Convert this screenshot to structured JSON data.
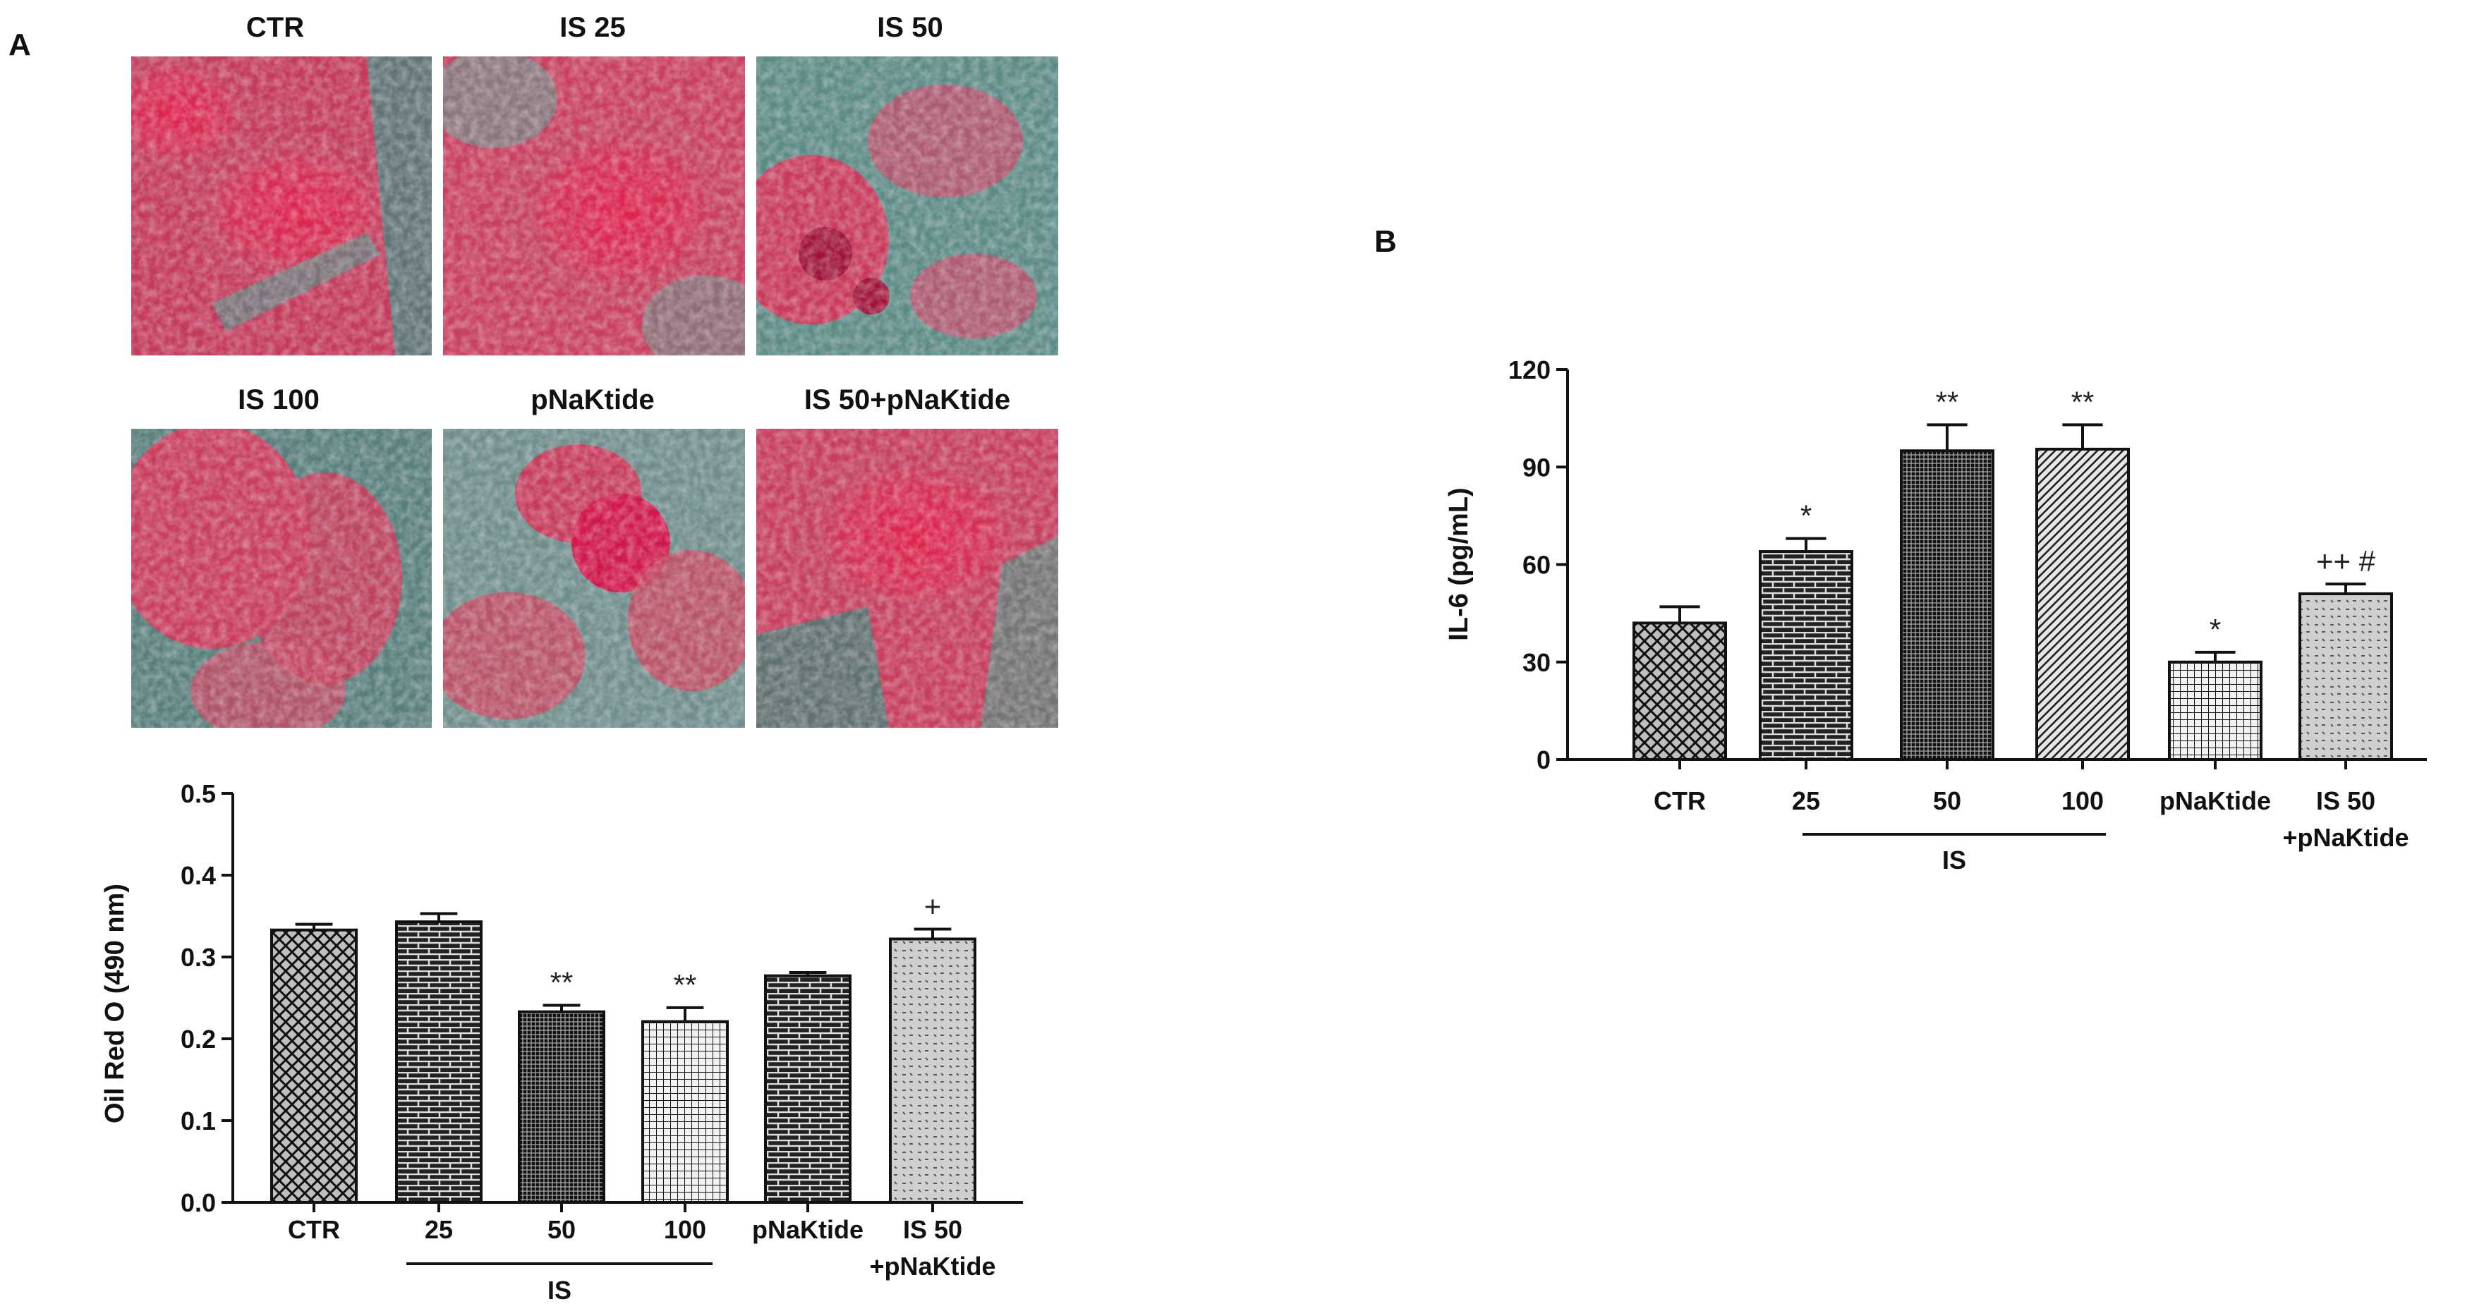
{
  "panel_a": {
    "label": "A",
    "micrographs": [
      {
        "label": "CTR"
      },
      {
        "label": "IS 25"
      },
      {
        "label": "IS 50"
      },
      {
        "label": "IS 100"
      },
      {
        "label": "pNaKtide"
      },
      {
        "label": "IS 50+pNaKtide"
      }
    ]
  },
  "panel_b": {
    "label": "B"
  },
  "chart_data": [
    {
      "type": "bar",
      "panel": "A",
      "ylabel": "Oil Red O (490 nm)",
      "xlabel": "",
      "ylim": [
        0,
        0.5
      ],
      "yticks": [
        "0.0",
        "0.1",
        "0.2",
        "0.3",
        "0.4",
        "0.5"
      ],
      "categories": [
        "CTR",
        "25",
        "50",
        "100",
        "pNaKtide",
        "IS 50",
        "+pNaKtide"
      ],
      "bars": [
        {
          "label": "CTR",
          "value": 0.333,
          "error": 0.007,
          "pattern": "crosshatch",
          "annotation": ""
        },
        {
          "label": "25",
          "value": 0.343,
          "error": 0.01,
          "pattern": "brick",
          "annotation": ""
        },
        {
          "label": "50",
          "value": 0.233,
          "error": 0.008,
          "pattern": "dense",
          "annotation": "**"
        },
        {
          "label": "100",
          "value": 0.221,
          "error": 0.017,
          "pattern": "grid",
          "annotation": "**"
        },
        {
          "label": "pNaKtide",
          "value": 0.277,
          "error": 0.004,
          "pattern": "brick",
          "annotation": ""
        },
        {
          "label": "IS 50 +pNaKtide",
          "value": 0.322,
          "error": 0.012,
          "pattern": "dots",
          "annotation": "+"
        }
      ],
      "group_label": "IS",
      "grid": false
    },
    {
      "type": "bar",
      "panel": "B",
      "ylabel": "IL-6 (pg/mL)",
      "xlabel": "",
      "ylim": [
        0,
        120
      ],
      "yticks": [
        "0",
        "30",
        "60",
        "90",
        "120"
      ],
      "categories": [
        "CTR",
        "25",
        "50",
        "100",
        "pNaKtide",
        "IS 50",
        "+pNaKtide"
      ],
      "bars": [
        {
          "label": "CTR",
          "value": 42,
          "error": 5,
          "pattern": "crosshatch",
          "annotation": ""
        },
        {
          "label": "25",
          "value": 64,
          "error": 4,
          "pattern": "brick",
          "annotation": "*"
        },
        {
          "label": "50",
          "value": 95,
          "error": 8,
          "pattern": "dense",
          "annotation": "**"
        },
        {
          "label": "100",
          "value": 95.5,
          "error": 7.5,
          "pattern": "diagonal",
          "annotation": "**"
        },
        {
          "label": "pNaKtide",
          "value": 30,
          "error": 3,
          "pattern": "grid",
          "annotation": "*"
        },
        {
          "label": "IS 50 +pNaKtide",
          "value": 51,
          "error": 3,
          "pattern": "dots",
          "annotation": "++ #"
        }
      ],
      "group_label": "IS",
      "grid": false
    }
  ]
}
